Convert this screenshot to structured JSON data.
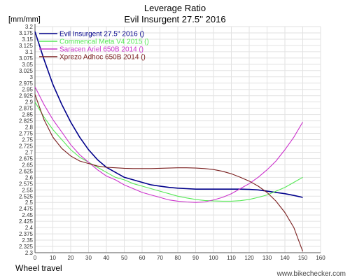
{
  "chart_data": {
    "type": "line",
    "title": "Leverage Ratio",
    "subtitle": "Evil Insurgent 27.5'' 2016",
    "ylabel": "[mm/mm]",
    "xlabel": "Wheel travel",
    "xlim": [
      0,
      160
    ],
    "ylim": [
      2.3,
      3.2
    ],
    "xticks": [
      0,
      10,
      20,
      30,
      40,
      50,
      60,
      70,
      80,
      90,
      100,
      110,
      120,
      130,
      140,
      150,
      160
    ],
    "yticks": [
      2.3,
      2.325,
      2.35,
      2.375,
      2.4,
      2.425,
      2.45,
      2.475,
      2.5,
      2.525,
      2.55,
      2.575,
      2.6,
      2.625,
      2.65,
      2.675,
      2.7,
      2.725,
      2.75,
      2.775,
      2.8,
      2.825,
      2.85,
      2.875,
      2.9,
      2.925,
      2.95,
      2.975,
      3,
      3.025,
      3.05,
      3.075,
      3.1,
      3.125,
      3.15,
      3.175,
      3.2
    ],
    "grid": true,
    "legend_position": "top-left",
    "series": [
      {
        "name": "Evil Insurgent 27.5'' 2016 ()",
        "color": "#00008b",
        "x": [
          0,
          5,
          10,
          15,
          20,
          25,
          30,
          35,
          40,
          45,
          50,
          55,
          60,
          65,
          70,
          75,
          80,
          85,
          90,
          95,
          100,
          105,
          110,
          115,
          120,
          125,
          130,
          135,
          140,
          145,
          150
        ],
        "y": [
          3.18,
          3.07,
          2.97,
          2.89,
          2.82,
          2.76,
          2.71,
          2.67,
          2.64,
          2.62,
          2.6,
          2.59,
          2.58,
          2.57,
          2.565,
          2.56,
          2.557,
          2.555,
          2.553,
          2.553,
          2.553,
          2.553,
          2.553,
          2.553,
          2.552,
          2.55,
          2.545,
          2.54,
          2.535,
          2.528,
          2.52
        ]
      },
      {
        "name": "Commencal Meta V4 2015 ()",
        "color": "#55e855",
        "x": [
          0,
          5,
          10,
          15,
          20,
          25,
          30,
          35,
          40,
          45,
          50,
          55,
          60,
          65,
          70,
          75,
          80,
          85,
          90,
          95,
          100,
          105,
          110,
          115,
          120,
          125,
          130,
          135,
          140,
          145,
          150
        ],
        "y": [
          2.9,
          2.84,
          2.79,
          2.75,
          2.71,
          2.68,
          2.66,
          2.64,
          2.62,
          2.6,
          2.59,
          2.575,
          2.565,
          2.555,
          2.545,
          2.535,
          2.525,
          2.518,
          2.512,
          2.508,
          2.506,
          2.505,
          2.505,
          2.507,
          2.512,
          2.52,
          2.53,
          2.545,
          2.56,
          2.58,
          2.6
        ]
      },
      {
        "name": "Saracen Ariel 650B 2014 ()",
        "color": "#cc33cc",
        "x": [
          0,
          5,
          10,
          15,
          20,
          25,
          30,
          35,
          40,
          45,
          50,
          55,
          60,
          65,
          70,
          75,
          80,
          85,
          90,
          95,
          100,
          105,
          110,
          115,
          120,
          125,
          130,
          135,
          140,
          145,
          150
        ],
        "y": [
          2.96,
          2.89,
          2.83,
          2.78,
          2.73,
          2.69,
          2.66,
          2.63,
          2.605,
          2.59,
          2.57,
          2.555,
          2.54,
          2.53,
          2.52,
          2.51,
          2.505,
          2.502,
          2.5,
          2.502,
          2.51,
          2.52,
          2.535,
          2.555,
          2.575,
          2.6,
          2.63,
          2.665,
          2.71,
          2.76,
          2.82
        ]
      },
      {
        "name": "Xprezo Adhoc 650B 2014 ()",
        "color": "#7a1f1f",
        "x": [
          0,
          5,
          10,
          15,
          20,
          25,
          30,
          35,
          40,
          45,
          50,
          55,
          60,
          65,
          70,
          75,
          80,
          85,
          90,
          95,
          100,
          105,
          110,
          115,
          120,
          125,
          130,
          135,
          140,
          145,
          150
        ],
        "y": [
          2.93,
          2.83,
          2.76,
          2.715,
          2.685,
          2.665,
          2.655,
          2.645,
          2.64,
          2.638,
          2.636,
          2.635,
          2.635,
          2.635,
          2.636,
          2.637,
          2.638,
          2.638,
          2.637,
          2.635,
          2.631,
          2.624,
          2.614,
          2.6,
          2.585,
          2.565,
          2.54,
          2.505,
          2.46,
          2.4,
          2.305
        ]
      }
    ]
  },
  "watermark": "www.bikechecker.com"
}
